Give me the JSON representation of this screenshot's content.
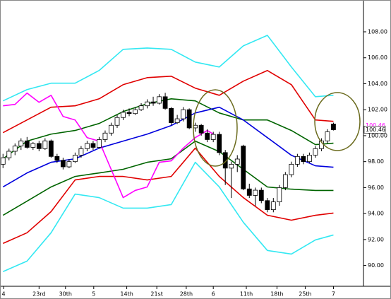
{
  "chart_data": {
    "type": "candlestick",
    "x": [
      0,
      1,
      2,
      3,
      4,
      5,
      6,
      7,
      8,
      9,
      10,
      11,
      12,
      13,
      14,
      15,
      16,
      17,
      18,
      19,
      20,
      21,
      22,
      23,
      24,
      25,
      26,
      27,
      28,
      29,
      30,
      31,
      32,
      33,
      34,
      35,
      36,
      37,
      38,
      39,
      40,
      41,
      42,
      43,
      44,
      45,
      46,
      47,
      48,
      49,
      50,
      51,
      52,
      53,
      54,
      55
    ],
    "open": [
      97.8,
      98.3,
      98.8,
      99.2,
      99.6,
      99.1,
      99.4,
      99.0,
      99.6,
      98.4,
      98.1,
      97.6,
      98.0,
      98.5,
      99.0,
      99.4,
      99.1,
      99.7,
      100.2,
      100.8,
      101.4,
      101.8,
      101.7,
      102.0,
      102.3,
      102.6,
      102.5,
      103.0,
      102.1,
      101.0,
      101.3,
      102.0,
      100.6,
      100.8,
      100.2,
      99.7,
      100.1,
      98.7,
      97.5,
      97.8,
      99.2,
      95.9,
      95.4,
      95.8,
      95.0,
      94.3,
      94.9,
      96.0,
      97.0,
      97.8,
      98.4,
      98.0,
      98.5,
      99.0,
      99.6,
      100.9
    ],
    "high": [
      98.6,
      99.0,
      99.4,
      99.8,
      99.9,
      99.5,
      99.6,
      99.8,
      99.7,
      98.6,
      98.3,
      98.2,
      98.7,
      99.2,
      99.6,
      99.6,
      99.9,
      100.4,
      101.0,
      101.6,
      102.0,
      102.1,
      102.2,
      102.5,
      102.8,
      103.0,
      103.2,
      103.3,
      102.2,
      101.6,
      102.2,
      102.1,
      101.0,
      100.9,
      100.5,
      100.3,
      100.3,
      98.9,
      98.0,
      98.5,
      99.3,
      96.3,
      96.0,
      96.0,
      95.2,
      95.2,
      96.2,
      97.2,
      98.0,
      98.6,
      98.6,
      98.7,
      99.2,
      99.8,
      100.5,
      101.0
    ],
    "low": [
      97.5,
      98.1,
      98.5,
      98.9,
      99.0,
      98.9,
      98.8,
      98.9,
      98.3,
      97.9,
      97.4,
      97.5,
      97.9,
      98.3,
      98.8,
      98.9,
      99.0,
      99.5,
      100.0,
      100.6,
      101.2,
      101.5,
      101.6,
      101.9,
      102.1,
      102.3,
      102.4,
      102.0,
      100.8,
      100.9,
      101.1,
      100.5,
      100.3,
      100.0,
      99.5,
      99.5,
      98.5,
      96.2,
      95.2,
      97.2,
      95.8,
      95.2,
      94.6,
      94.8,
      94.1,
      94.1,
      94.6,
      95.8,
      96.8,
      97.6,
      97.8,
      97.9,
      98.3,
      98.8,
      99.4,
      100.4
    ],
    "close": [
      98.3,
      98.8,
      99.2,
      99.6,
      99.1,
      99.4,
      99.0,
      99.6,
      98.4,
      98.1,
      97.6,
      98.0,
      98.5,
      99.0,
      99.4,
      99.1,
      99.7,
      100.2,
      100.8,
      101.4,
      101.8,
      101.7,
      102.0,
      102.3,
      102.6,
      102.5,
      103.0,
      102.1,
      101.0,
      101.3,
      102.0,
      100.6,
      100.8,
      100.2,
      99.7,
      100.1,
      98.7,
      97.5,
      97.8,
      98.2,
      95.9,
      95.4,
      95.8,
      95.0,
      94.3,
      94.9,
      96.0,
      97.0,
      97.8,
      98.4,
      98.0,
      98.5,
      99.0,
      99.6,
      100.3,
      100.46
    ],
    "series": [
      {
        "color": "#33e8f2",
        "x": [
          0,
          4,
          8,
          12,
          16,
          20,
          24,
          28,
          32,
          36,
          40,
          44,
          48,
          52,
          55
        ],
        "values": [
          102.68,
          103.55,
          104.04,
          104.04,
          105.02,
          106.65,
          106.75,
          106.65,
          105.67,
          105.29,
          106.92,
          107.73,
          105.29,
          103.0,
          103.11
        ]
      },
      {
        "color": "#e00000",
        "x": [
          0,
          4,
          8,
          12,
          16,
          20,
          24,
          28,
          32,
          36,
          40,
          44,
          48,
          52,
          55
        ],
        "values": [
          100.23,
          101.21,
          102.19,
          102.3,
          102.84,
          103.93,
          104.47,
          104.58,
          103.66,
          103.11,
          104.2,
          105.02,
          103.93,
          101.21,
          101.1
        ]
      },
      {
        "color": "#006400",
        "x": [
          0,
          4,
          8,
          12,
          16,
          20,
          24,
          28,
          32,
          36,
          40,
          44,
          48,
          52,
          55
        ],
        "values": [
          98.22,
          99.58,
          100.12,
          100.4,
          100.94,
          101.86,
          102.46,
          102.84,
          102.68,
          101.75,
          101.21,
          101.21,
          100.4,
          99.31,
          99.42
        ]
      },
      {
        "color": "#0000dd",
        "x": [
          0,
          4,
          8,
          12,
          16,
          20,
          24,
          28,
          32,
          36,
          40,
          44,
          48,
          52,
          55
        ],
        "values": [
          96.05,
          97.13,
          97.95,
          98.22,
          99.04,
          99.58,
          100.12,
          100.78,
          101.75,
          102.19,
          101.21,
          99.85,
          98.49,
          97.68,
          97.57
        ]
      },
      {
        "color": "#006400",
        "x": [
          0,
          4,
          8,
          12,
          16,
          20,
          24,
          28,
          32,
          36,
          40,
          44,
          48,
          52,
          55
        ],
        "values": [
          93.87,
          94.96,
          96.05,
          96.86,
          97.13,
          97.41,
          97.95,
          98.22,
          99.58,
          98.77,
          97.41,
          96.05,
          95.88,
          95.78,
          95.78
        ]
      },
      {
        "color": "#e00000",
        "x": [
          0,
          4,
          8,
          12,
          16,
          20,
          24,
          28,
          32,
          36,
          40,
          44,
          48,
          52,
          55
        ],
        "values": [
          91.7,
          92.52,
          94.15,
          96.59,
          96.86,
          96.86,
          96.59,
          96.86,
          99.04,
          96.86,
          95.23,
          93.87,
          93.49,
          93.87,
          94.04
        ]
      },
      {
        "color": "#33e8f2",
        "x": [
          0,
          4,
          8,
          12,
          16,
          20,
          24,
          28,
          32,
          36,
          40,
          44,
          48,
          52,
          55
        ],
        "values": [
          89.53,
          90.34,
          92.52,
          95.5,
          95.23,
          94.42,
          94.42,
          94.69,
          97.95,
          96.05,
          93.33,
          91.16,
          90.88,
          91.97,
          92.35
        ]
      },
      {
        "color": "#ff00ff",
        "x": [
          0,
          2,
          4,
          6,
          8,
          10,
          12,
          14,
          16,
          18,
          20,
          22,
          24,
          26,
          28,
          30,
          32,
          34,
          35
        ],
        "values": [
          102.3,
          102.41,
          103.28,
          102.57,
          103.11,
          101.48,
          101.21,
          99.85,
          99.58,
          97.41,
          95.23,
          95.78,
          96.05,
          97.95,
          98.06,
          99.04,
          99.85,
          100.4,
          100.12
        ]
      }
    ],
    "xlim": [
      -0.5,
      60
    ],
    "ylim": [
      88.4,
      110.45
    ],
    "xticks": [
      {
        "value": 0.1,
        "label": "4"
      },
      {
        "value": 6.0,
        "label": "23rd"
      },
      {
        "value": 10.4,
        "label": "30th"
      },
      {
        "value": 15.1,
        "label": "5"
      },
      {
        "value": 20.6,
        "label": "14th"
      },
      {
        "value": 25.6,
        "label": "21st"
      },
      {
        "value": 30.5,
        "label": "28th"
      },
      {
        "value": 35.0,
        "label": "6"
      },
      {
        "value": 40.5,
        "label": "11th"
      },
      {
        "value": 45.6,
        "label": "18th"
      },
      {
        "value": 50.3,
        "label": "25th"
      },
      {
        "value": 55.0,
        "label": "7"
      }
    ],
    "yticks": [
      {
        "value": 90,
        "label": "90.00"
      },
      {
        "value": 92,
        "label": "92.00"
      },
      {
        "value": 94,
        "label": "94.00"
      },
      {
        "value": 96,
        "label": "96.00"
      },
      {
        "value": 98,
        "label": "98.00"
      },
      {
        "value": 100,
        "label": "100.00"
      },
      {
        "value": 102,
        "label": "102.00"
      },
      {
        "value": 104,
        "label": "104.00"
      },
      {
        "value": 106,
        "label": "106.00"
      },
      {
        "value": 108,
        "label": "108.00"
      }
    ],
    "annotations": [
      {
        "text": "100.46",
        "value": 100.46,
        "color": "#ff00ff"
      },
      {
        "text": "100.46",
        "value": 100.46,
        "color": "#000000"
      }
    ],
    "up_color": "#ffffff",
    "down_color": "#000000",
    "grid": false
  }
}
